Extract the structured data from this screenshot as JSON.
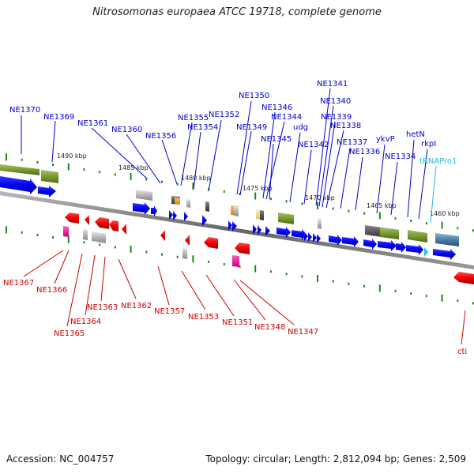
{
  "title": "Nitrosomonas europaea ATCC 19718, complete genome",
  "accession": "Accession: NC_004757",
  "summary": "Topology: circular; Length: 2,812,094 bp; Genes: 2,509",
  "kbp_ticks": [
    "1490 kbp",
    "1485 kbp",
    "1480 kbp",
    "1475 kbp",
    "1470 kbp",
    "1465 kbp",
    "1460 kbp"
  ],
  "labels_top": [
    "NE1370",
    "NE1369",
    "NE1361",
    "NE1360",
    "NE1356",
    "NE1355",
    "NE1354",
    "NE1352",
    "NE1350",
    "NE1349",
    "NE1346",
    "NE1344",
    "NE1345",
    "NE1341",
    "NE1340",
    "udg",
    "NE1342",
    "NE1339",
    "NE1338",
    "NE1337",
    "NE1336",
    "ykvP",
    "NE1334",
    "hetN",
    "rkpI",
    "tRNAPro1"
  ],
  "labels_bottom": [
    "NE1367",
    "NE1366",
    "NE1365",
    "NE1364",
    "NE1363",
    "NE1362",
    "NE1357",
    "NE1353",
    "NE1351",
    "NE1348",
    "NE1347",
    "cti"
  ],
  "colors": {
    "top_label": "#0000cc",
    "bottom_label": "#cc0000",
    "trna_label": "#22b8e0",
    "forward_gene": "#0000ee",
    "reverse_gene": "#ee0000",
    "backbone": "#777777",
    "tick": "#1a8a1a"
  }
}
